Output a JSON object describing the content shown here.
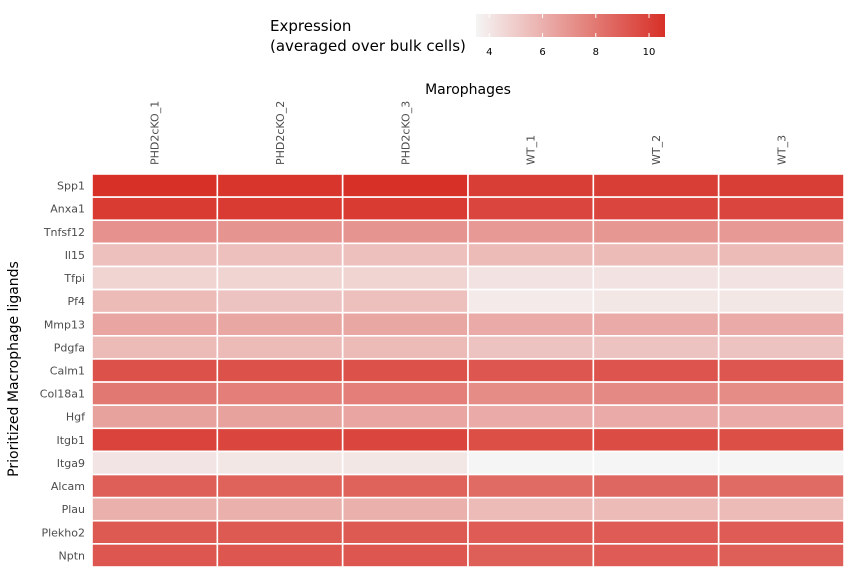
{
  "chart_data": {
    "type": "heatmap",
    "title": "",
    "xlabel": "Marophages",
    "ylabel": "Prioritized Macrophage ligands",
    "columns": [
      "PHD2cKO_1",
      "PHD2cKO_2",
      "PHD2cKO_3",
      "WT_1",
      "WT_2",
      "WT_3"
    ],
    "rows": [
      "Spp1",
      "Anxa1",
      "Tnfsf12",
      "Il15",
      "Tfpi",
      "Pf4",
      "Mmp13",
      "Pdgfa",
      "Calm1",
      "Col18a1",
      "Hgf",
      "Itgb1",
      "Itga9",
      "Alcam",
      "Plau",
      "Plekho2",
      "Nptn"
    ],
    "values": [
      [
        10.6,
        10.4,
        10.6,
        10.1,
        10.1,
        10.1
      ],
      [
        10.2,
        10.2,
        10.2,
        9.8,
        9.8,
        9.8
      ],
      [
        7.1,
        7.0,
        7.0,
        6.8,
        6.9,
        6.8
      ],
      [
        5.4,
        5.4,
        5.4,
        5.6,
        5.6,
        5.6
      ],
      [
        4.7,
        4.7,
        4.7,
        4.2,
        4.2,
        4.2
      ],
      [
        5.6,
        5.3,
        5.4,
        3.9,
        4.0,
        4.0
      ],
      [
        6.4,
        6.3,
        6.3,
        6.2,
        6.2,
        6.2
      ],
      [
        5.6,
        5.6,
        5.6,
        5.3,
        5.3,
        5.3
      ],
      [
        9.4,
        9.4,
        9.4,
        9.2,
        9.3,
        9.2
      ],
      [
        8.0,
        7.8,
        7.8,
        7.3,
        7.4,
        7.3
      ],
      [
        6.5,
        6.5,
        6.4,
        6.2,
        6.2,
        6.2
      ],
      [
        9.9,
        9.8,
        9.8,
        9.5,
        9.6,
        9.5
      ],
      [
        4.1,
        4.0,
        4.0,
        3.5,
        3.5,
        3.5
      ],
      [
        8.9,
        8.8,
        8.8,
        8.5,
        8.6,
        8.5
      ],
      [
        6.0,
        6.0,
        6.0,
        5.6,
        5.6,
        5.6
      ],
      [
        9.1,
        9.1,
        9.1,
        9.0,
        9.0,
        9.0
      ],
      [
        9.2,
        9.2,
        9.2,
        8.9,
        9.0,
        8.9
      ]
    ],
    "color_scale": {
      "min": 3.5,
      "max": 10.6,
      "low_color": "#f5f5f5",
      "high_color": "#d73027"
    },
    "legend": {
      "title_lines": [
        "Expression",
        "(averaged over bulk cells)"
      ],
      "ticks": [
        4,
        6,
        8,
        10
      ],
      "placement": "top"
    }
  }
}
